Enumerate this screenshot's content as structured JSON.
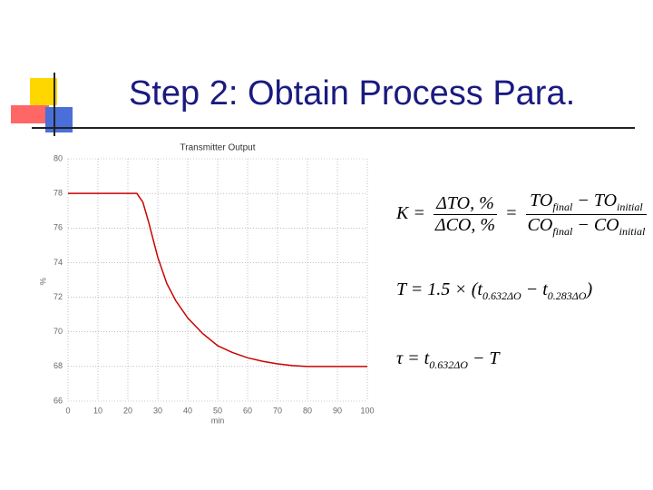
{
  "slide": {
    "title": "Step 2: Obtain Process Para."
  },
  "chart_data": {
    "type": "line",
    "title": "Transmitter Output",
    "x_label": "min",
    "y_label": "%",
    "x": [
      0,
      10,
      20,
      23,
      25,
      27,
      30,
      33,
      36,
      40,
      45,
      50,
      55,
      60,
      65,
      70,
      75,
      80,
      90,
      100
    ],
    "values": [
      78,
      78,
      78,
      78,
      77.5,
      76.3,
      74.3,
      72.8,
      71.8,
      70.8,
      69.9,
      69.2,
      68.8,
      68.5,
      68.3,
      68.15,
      68.05,
      68,
      68,
      68
    ],
    "color": "#cc0000",
    "xlim": [
      0,
      100
    ],
    "xticks": [
      0,
      10,
      20,
      30,
      40,
      50,
      60,
      70,
      80,
      90,
      100
    ],
    "ylim": [
      66,
      80
    ],
    "yticks": [
      66,
      68,
      70,
      72,
      74,
      76,
      78,
      80
    ],
    "grid": true
  },
  "equations": {
    "k": {
      "lhs": "K =",
      "frac1_num": "ΔTO, %",
      "frac1_den": "ΔCO, %",
      "eq": "=",
      "num_a": "TO",
      "num_a_sub": "final",
      "num_b": " − TO",
      "num_b_sub": "initial",
      "den_a": "CO",
      "den_a_sub": "final",
      "den_b": " − CO",
      "den_b_sub": "initial"
    },
    "t": {
      "lhs": "T = 1.5 × (",
      "a": "t",
      "a_sub": "0.632ΔO",
      "b": " − t",
      "b_sub": "0.283ΔO",
      "close": ")"
    },
    "tau": {
      "lhs": "τ = t",
      "a_sub": "0.632ΔO",
      "rest": " − T"
    }
  }
}
